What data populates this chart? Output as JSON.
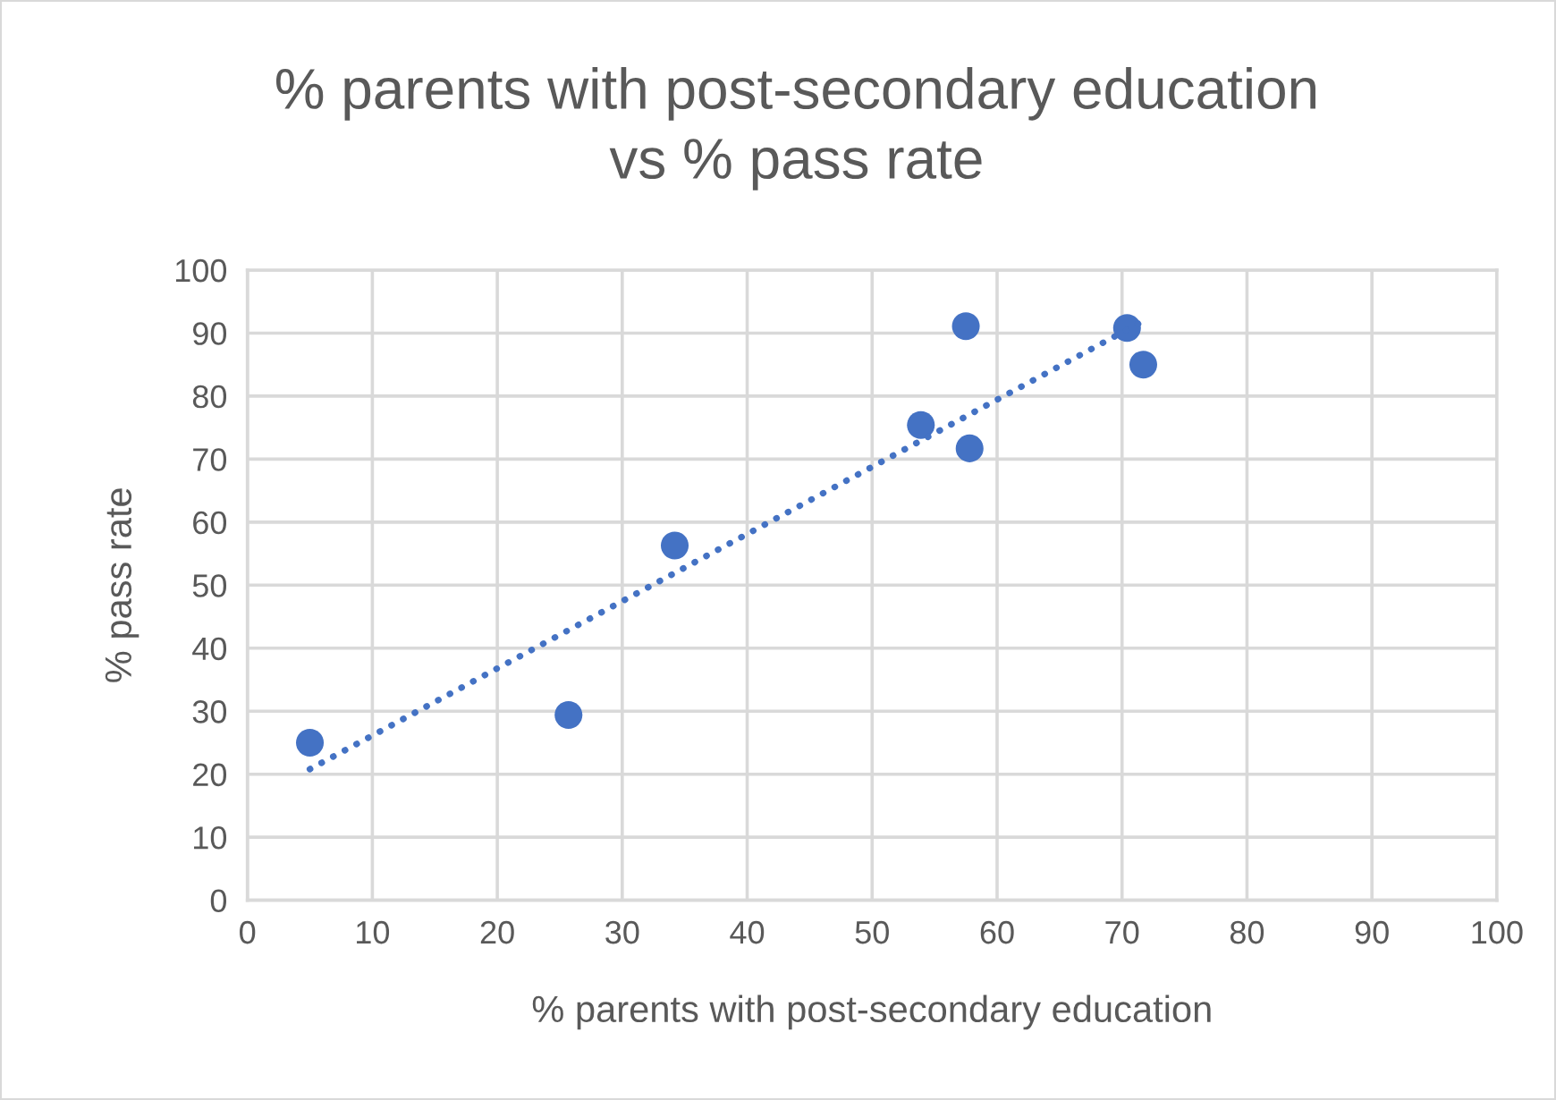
{
  "chart_data": {
    "type": "scatter",
    "title": "% parents with post-secondary education\nvs % pass rate",
    "xlabel": "% parents with post-secondary education",
    "ylabel": "% pass rate",
    "xlim": [
      0,
      100
    ],
    "xticks": [
      0,
      10,
      20,
      30,
      40,
      50,
      60,
      70,
      80,
      90,
      100
    ],
    "ylim": [
      0,
      100
    ],
    "yticks": [
      0,
      10,
      20,
      30,
      40,
      50,
      60,
      70,
      80,
      90,
      100
    ],
    "grid": true,
    "marker": "circle",
    "series": [
      {
        "color": "#4472c4",
        "x": [
          5,
          25.7,
          34.2,
          53.9,
          57.5,
          57.8,
          70.4,
          71.7
        ],
        "values": [
          25,
          29.4,
          56.3,
          75.4,
          91.1,
          71.7,
          90.8,
          85.0
        ]
      },
      {
        "type": "line",
        "color": "#4472c4",
        "marker": "none",
        "line_style": "dotted",
        "x": [
          5,
          71.7
        ],
        "values": [
          20.8,
          91.9
        ]
      }
    ]
  }
}
